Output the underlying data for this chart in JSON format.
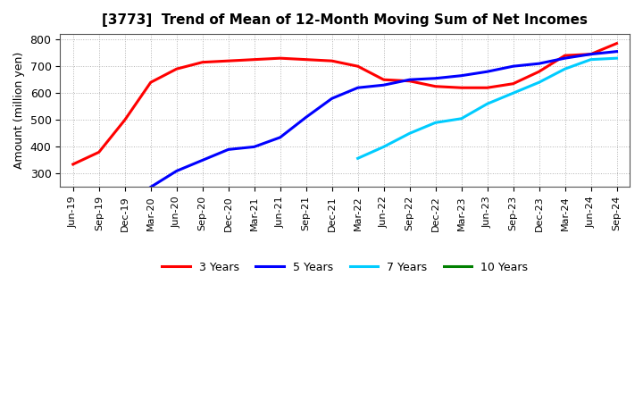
{
  "title": "[3773]  Trend of Mean of 12-Month Moving Sum of Net Incomes",
  "ylabel": "Amount (million yen)",
  "ylim": [
    250,
    820
  ],
  "yticks": [
    300,
    400,
    500,
    600,
    700,
    800
  ],
  "background_color": "#ffffff",
  "grid_color": "#aaaaaa",
  "x_labels": [
    "Jun-19",
    "Sep-19",
    "Dec-19",
    "Mar-20",
    "Jun-20",
    "Sep-20",
    "Dec-20",
    "Mar-21",
    "Jun-21",
    "Sep-21",
    "Dec-21",
    "Mar-22",
    "Jun-22",
    "Sep-22",
    "Dec-22",
    "Mar-23",
    "Jun-23",
    "Sep-23",
    "Dec-23",
    "Mar-24",
    "Jun-24",
    "Sep-24"
  ],
  "series": {
    "3 Years": {
      "color": "#ff0000",
      "x_indices": [
        0,
        1,
        2,
        3,
        4,
        5,
        6,
        7,
        8,
        9,
        10,
        11,
        12,
        13,
        14,
        15,
        16,
        17,
        18,
        19,
        20,
        21
      ],
      "y": [
        335,
        380,
        500,
        640,
        690,
        715,
        720,
        725,
        730,
        725,
        720,
        700,
        650,
        645,
        625,
        620,
        620,
        635,
        680,
        740,
        745,
        785
      ]
    },
    "5 Years": {
      "color": "#0000ff",
      "x_indices": [
        3,
        4,
        5,
        6,
        7,
        8,
        9,
        10,
        11,
        12,
        13,
        14,
        15,
        16,
        17,
        18,
        19,
        20,
        21
      ],
      "y": [
        250,
        310,
        350,
        390,
        400,
        435,
        510,
        580,
        620,
        630,
        650,
        655,
        665,
        680,
        700,
        710,
        730,
        745,
        755
      ]
    },
    "7 Years": {
      "color": "#00ccff",
      "x_indices": [
        11,
        12,
        13,
        14,
        15,
        16,
        17,
        18,
        19,
        20,
        21
      ],
      "y": [
        357,
        400,
        450,
        490,
        505,
        560,
        600,
        640,
        690,
        725,
        730
      ]
    },
    "10 Years": {
      "color": "#008000",
      "x_indices": [],
      "y": []
    }
  },
  "legend_labels": [
    "3 Years",
    "5 Years",
    "7 Years",
    "10 Years"
  ],
  "legend_colors": [
    "#ff0000",
    "#0000ff",
    "#00ccff",
    "#008000"
  ]
}
